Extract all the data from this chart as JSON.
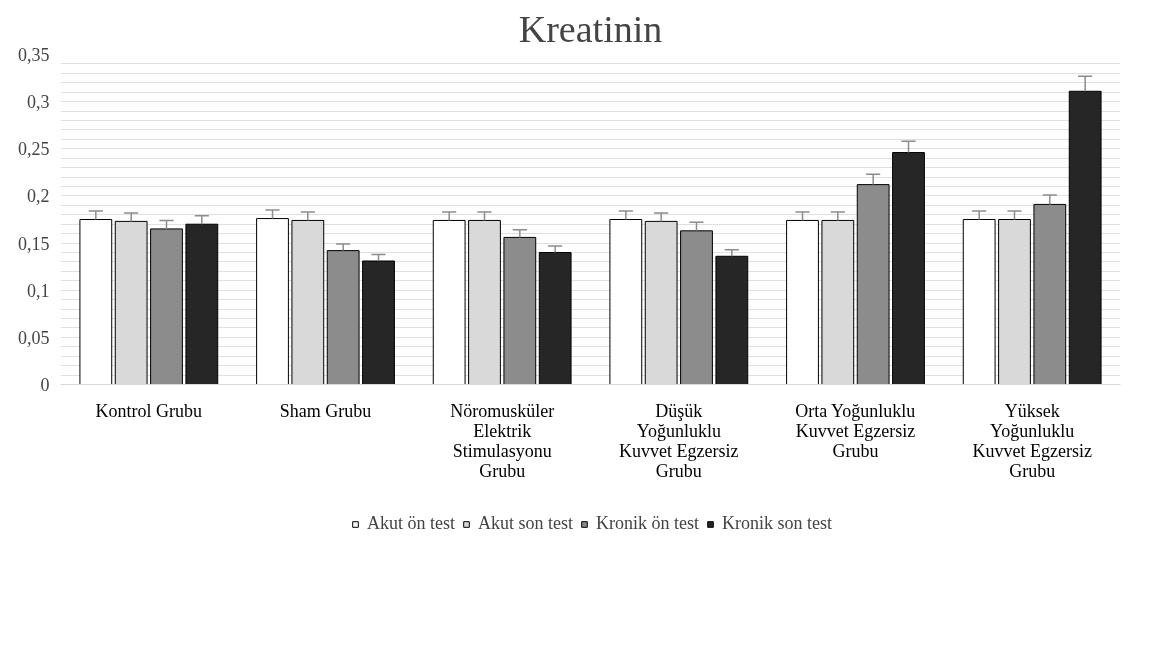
{
  "chart_data": {
    "type": "bar",
    "title": "Kreatinin",
    "categories": [
      "Kontrol Grubu",
      "Sham Grubu",
      "Nöromusküler\nElektrik\nStimulasyonu\nGrubu",
      "Düşük\nYoğunluklu\nKuvvet Egzersiz\nGrubu",
      "Orta Yoğunluklu\nKuvvet Egzersiz\nGrubu",
      "Yüksek\nYoğunluklu\nKuvvet Egzersiz\nGrubu"
    ],
    "series": [
      {
        "name": "Akut ön test",
        "color": "#ffffff",
        "values": [
          0.175,
          0.176,
          0.174,
          0.175,
          0.174,
          0.175
        ],
        "errors": [
          [
            0.175,
            0.184
          ],
          [
            0.176,
            0.185
          ],
          [
            0.174,
            0.183
          ],
          [
            0.175,
            0.184
          ],
          [
            0.174,
            0.183
          ],
          [
            0.175,
            0.184
          ]
        ]
      },
      {
        "name": "Akut son test",
        "color": "#d9d9d9",
        "values": [
          0.173,
          0.174,
          0.174,
          0.173,
          0.174,
          0.175
        ],
        "errors": [
          [
            0.173,
            0.182
          ],
          [
            0.174,
            0.183
          ],
          [
            0.174,
            0.183
          ],
          [
            0.173,
            0.182
          ],
          [
            0.174,
            0.183
          ],
          [
            0.175,
            0.184
          ]
        ]
      },
      {
        "name": "Kronik ön test",
        "color": "#8c8c8c",
        "values": [
          0.165,
          0.142,
          0.156,
          0.163,
          0.212,
          0.191
        ],
        "errors": [
          [
            0.165,
            0.174
          ],
          [
            0.142,
            0.149
          ],
          [
            0.156,
            0.164
          ],
          [
            0.163,
            0.172
          ],
          [
            0.212,
            0.223
          ],
          [
            0.191,
            0.201
          ]
        ]
      },
      {
        "name": "Kronik son test",
        "color": "#262626",
        "values": [
          0.17,
          0.131,
          0.14,
          0.136,
          0.246,
          0.311
        ],
        "errors": [
          [
            0.17,
            0.179
          ],
          [
            0.131,
            0.138
          ],
          [
            0.14,
            0.147
          ],
          [
            0.136,
            0.143
          ],
          [
            0.246,
            0.258
          ],
          [
            0.311,
            0.327
          ]
        ]
      }
    ],
    "ylim": [
      0,
      0.35
    ],
    "yticks": [
      {
        "value": 0,
        "label": "0"
      },
      {
        "value": 0.01,
        "label": null
      },
      {
        "value": 0.02,
        "label": null
      },
      {
        "value": 0.03,
        "label": null
      },
      {
        "value": 0.04,
        "label": null
      },
      {
        "value": 0.05,
        "label": "0,05"
      },
      {
        "value": 0.06,
        "label": null
      },
      {
        "value": 0.07,
        "label": null
      },
      {
        "value": 0.08,
        "label": null
      },
      {
        "value": 0.09,
        "label": null
      },
      {
        "value": 0.1,
        "label": "0,1"
      },
      {
        "value": 0.11,
        "label": null
      },
      {
        "value": 0.12,
        "label": null
      },
      {
        "value": 0.13,
        "label": null
      },
      {
        "value": 0.14,
        "label": null
      },
      {
        "value": 0.15,
        "label": "0,15"
      },
      {
        "value": 0.16,
        "label": null
      },
      {
        "value": 0.17,
        "label": null
      },
      {
        "value": 0.18,
        "label": null
      },
      {
        "value": 0.19,
        "label": null
      },
      {
        "value": 0.2,
        "label": "0,2"
      },
      {
        "value": 0.21,
        "label": null
      },
      {
        "value": 0.22,
        "label": null
      },
      {
        "value": 0.23,
        "label": null
      },
      {
        "value": 0.24,
        "label": null
      },
      {
        "value": 0.25,
        "label": "0,25"
      },
      {
        "value": 0.26,
        "label": null
      },
      {
        "value": 0.27,
        "label": null
      },
      {
        "value": 0.28,
        "label": null
      },
      {
        "value": 0.29,
        "label": null
      },
      {
        "value": 0.3,
        "label": "0,3"
      },
      {
        "value": 0.31,
        "label": null
      },
      {
        "value": 0.32,
        "label": null
      },
      {
        "value": 0.33,
        "label": null
      },
      {
        "value": 0.34,
        "label": null
      },
      {
        "value": 0.35,
        "label": "0,35"
      }
    ],
    "grid": "y",
    "legend": "bottom"
  }
}
